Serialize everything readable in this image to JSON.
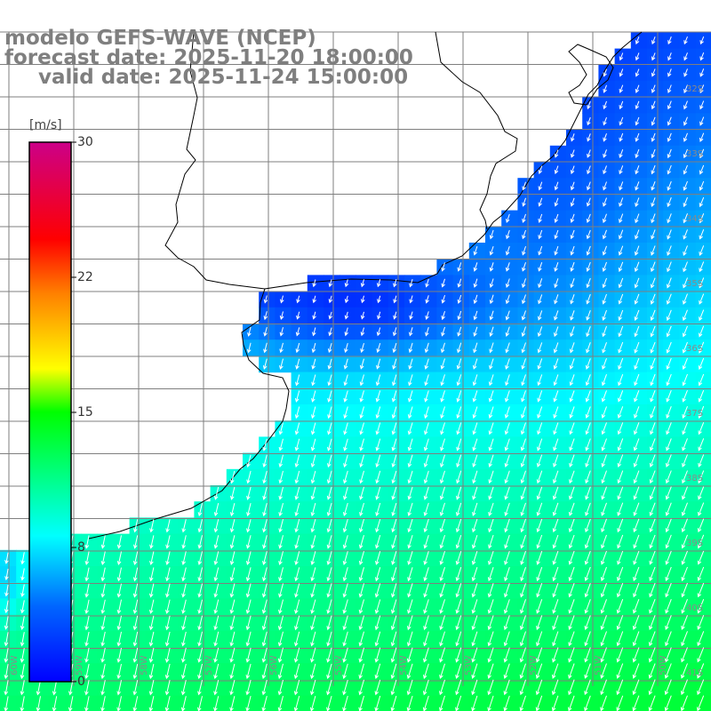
{
  "header": {
    "model": "modelo GEFS-WAVE (NCEP)",
    "forecast_date": "forecast date: 2025-11-20 18:00:00",
    "valid_date": "valid date: 2025-11-24 15:00:00"
  },
  "colorbar": {
    "unit": "[m/s]",
    "ticks": [
      "30",
      "22",
      "15",
      "8",
      "0"
    ],
    "min": 0,
    "max": 30
  },
  "grid": {
    "lon_labels": [
      "60W",
      "59W",
      "58W",
      "57W",
      "56W",
      "55W",
      "54W",
      "53W",
      "52W",
      "51W",
      "50W"
    ],
    "lat_labels": [
      "32S",
      "33S",
      "34S",
      "35S",
      "36S",
      "37S",
      "38S",
      "39S",
      "40S",
      "41S"
    ]
  },
  "colors": {
    "header_text": "#7f7f7f",
    "land": "#ffffff",
    "coastline": "#000000",
    "graticule": "#7f7f7f",
    "vectors": "#ffffff"
  },
  "field": {
    "variable": "wind speed",
    "units": "m/s",
    "dominant_direction": "from north / north-northeast (vectors pointing south)",
    "speed_range_shown": [
      2,
      13
    ]
  }
}
